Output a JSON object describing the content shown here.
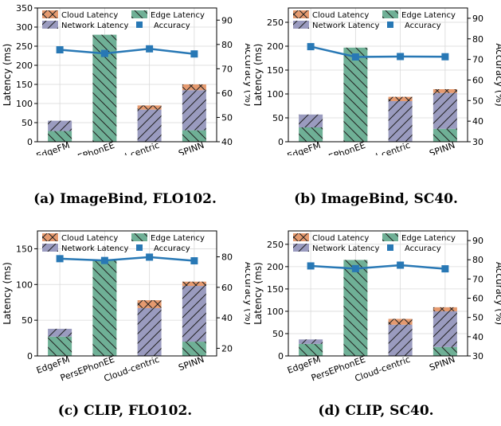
{
  "colors": {
    "edge": "#6fb096",
    "network": "#9a9bbf",
    "cloud": "#e59a6f",
    "accuracy": "#2878b5"
  },
  "chart_data": [
    {
      "type": "bar",
      "caption": "(a) ImageBind, FLO102.",
      "categories": [
        "EdgeFM",
        "PersEPhonEE",
        "Cloud-centric",
        "SPINN"
      ],
      "series": [
        {
          "name": "Edge Latency",
          "values": [
            28,
            280,
            0,
            30
          ]
        },
        {
          "name": "Network Latency",
          "values": [
            27,
            0,
            84,
            105
          ]
        },
        {
          "name": "Cloud Latency",
          "values": [
            0,
            0,
            11,
            15
          ]
        },
        {
          "name": "Accuracy",
          "values": [
            77.8,
            76.3,
            78.2,
            76.1
          ],
          "axis": "right"
        }
      ],
      "ylabel": "Latency (ms)",
      "ylim": [
        0,
        350
      ],
      "yticks": [
        0,
        50,
        100,
        150,
        200,
        250,
        300,
        350
      ],
      "y2label": "Accuracy (%)",
      "y2lim": [
        40,
        95
      ],
      "y2ticks": [
        40,
        50,
        60,
        70,
        80,
        90
      ],
      "legend": "top",
      "grid": true
    },
    {
      "type": "bar",
      "caption": "(b) ImageBind, SC40.",
      "categories": [
        "EdgeFM",
        "PersEPhonEE",
        "Cloud-centric",
        "SPINN"
      ],
      "series": [
        {
          "name": "Edge Latency",
          "values": [
            30,
            197,
            0,
            27
          ]
        },
        {
          "name": "Network Latency",
          "values": [
            27,
            0,
            85,
            75
          ]
        },
        {
          "name": "Cloud Latency",
          "values": [
            0,
            0,
            9,
            8
          ]
        },
        {
          "name": "Accuracy",
          "values": [
            76.2,
            71.2,
            71.4,
            71.3
          ],
          "axis": "right"
        }
      ],
      "ylabel": "Latency (ms)",
      "ylim": [
        0,
        280
      ],
      "yticks": [
        0,
        50,
        100,
        150,
        200,
        250
      ],
      "y2label": "Accuracy (%)",
      "y2lim": [
        30,
        95
      ],
      "y2ticks": [
        30,
        40,
        50,
        60,
        70,
        80,
        90
      ],
      "legend": "top",
      "grid": true
    },
    {
      "type": "bar",
      "caption": "(c) CLIP, FLO102.",
      "categories": [
        "EdgeFM",
        "PersEPhonEE",
        "Cloud-centric",
        "SPINN"
      ],
      "series": [
        {
          "name": "Edge Latency",
          "values": [
            27,
            134,
            0,
            20
          ]
        },
        {
          "name": "Network Latency",
          "values": [
            11,
            0,
            67,
            78
          ]
        },
        {
          "name": "Cloud Latency",
          "values": [
            0,
            0,
            11,
            6
          ]
        },
        {
          "name": "Accuracy",
          "values": [
            78.8,
            77.6,
            79.8,
            77.4
          ],
          "axis": "right"
        }
      ],
      "ylabel": "Latency (ms)",
      "ylim": [
        0,
        175
      ],
      "yticks": [
        0,
        50,
        100,
        150
      ],
      "y2label": "Accuracy (%)",
      "y2lim": [
        15,
        97
      ],
      "y2ticks": [
        20,
        40,
        60,
        80
      ],
      "legend": "top",
      "grid": true
    },
    {
      "type": "bar",
      "caption": "(d) CLIP, SC40.",
      "categories": [
        "EdgeFM",
        "PersEPhonEE",
        "Cloud-centric",
        "SPINN"
      ],
      "series": [
        {
          "name": "Edge Latency",
          "values": [
            27,
            215,
            0,
            20
          ]
        },
        {
          "name": "Network Latency",
          "values": [
            10,
            0,
            70,
            80
          ]
        },
        {
          "name": "Cloud Latency",
          "values": [
            0,
            0,
            13,
            9
          ]
        },
        {
          "name": "Accuracy",
          "values": [
            76.8,
            75.4,
            77.2,
            75.3
          ],
          "axis": "right"
        }
      ],
      "ylabel": "Latency (ms)",
      "ylim": [
        0,
        280
      ],
      "yticks": [
        0,
        50,
        100,
        150,
        200,
        250
      ],
      "y2label": "Accuracy (%)",
      "y2lim": [
        30,
        95
      ],
      "y2ticks": [
        30,
        40,
        50,
        60,
        70,
        80,
        90
      ],
      "legend": "top",
      "grid": true
    }
  ]
}
